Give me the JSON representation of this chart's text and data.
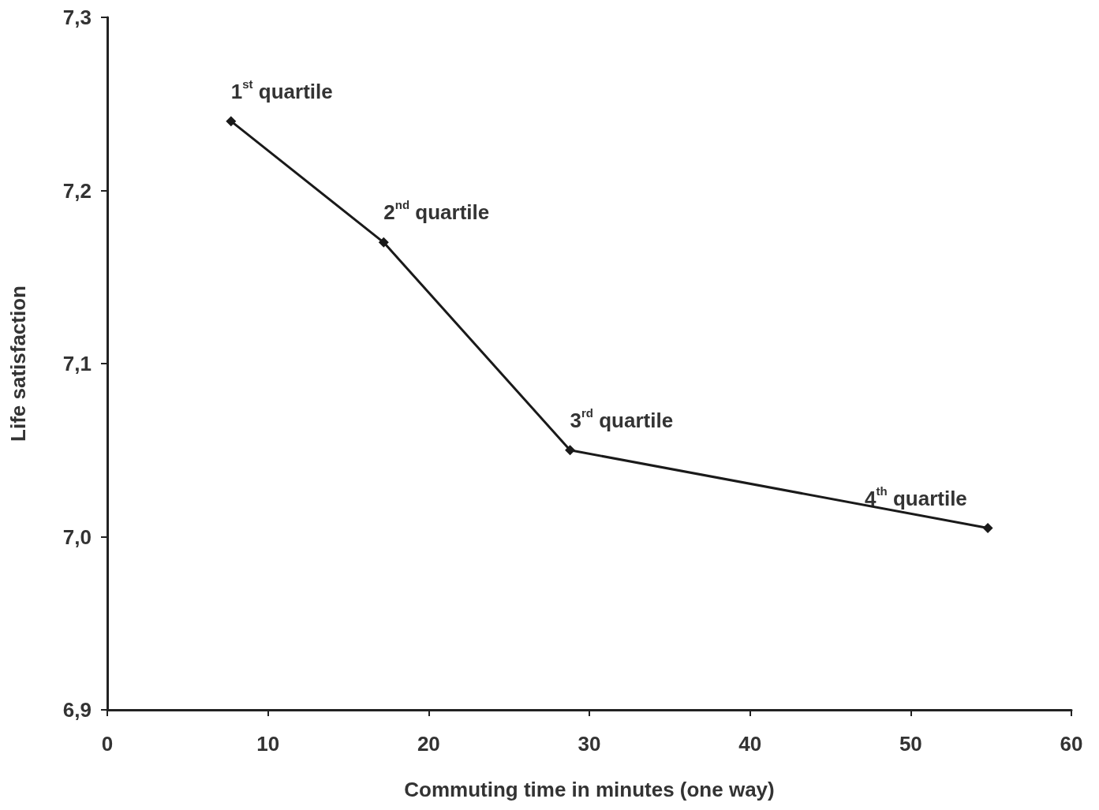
{
  "chart_data": {
    "type": "line",
    "xlabel": "Commuting time in minutes (one way)",
    "ylabel": "Life satisfaction",
    "x": [
      7.7,
      17.2,
      28.8,
      54.8
    ],
    "series": [
      {
        "color": "#1a1a1a",
        "values": [
          7.24,
          7.17,
          7.05,
          7.005
        ]
      }
    ],
    "xlim": [
      0,
      60
    ],
    "xticks": [
      0,
      10,
      20,
      30,
      40,
      50,
      60
    ],
    "ylim": [
      6.9,
      7.3
    ],
    "yticks": [
      {
        "value": 6.9,
        "label": "6,9"
      },
      {
        "value": 7.0,
        "label": "7,0"
      },
      {
        "value": 7.1,
        "label": "7,1"
      },
      {
        "value": 7.2,
        "label": "7,2"
      },
      {
        "value": 7.3,
        "label": "7,3"
      }
    ],
    "annotations": [
      {
        "text": "1$^{st}$ quartile",
        "x": 7.7,
        "y": 7.24
      },
      {
        "text": "2$^{nd}$ quartile",
        "x": 17.2,
        "y": 7.17
      },
      {
        "text": "3$^{rd}$ quartile",
        "x": 28.8,
        "y": 7.05
      },
      {
        "text": "4$^{th}$ quartile",
        "x": 54.8,
        "y": 7.005
      }
    ],
    "grid": false,
    "marker": "diamond",
    "line_style": "solid"
  }
}
